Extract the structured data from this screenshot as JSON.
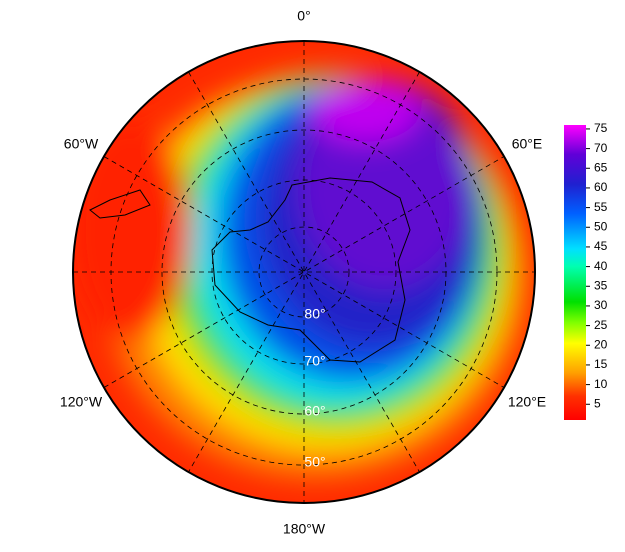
{
  "map": {
    "longitude_labels": [
      "0°",
      "60°E",
      "120°E",
      "180°W",
      "120°W",
      "60°W"
    ],
    "latitude_labels": [
      "80°",
      "70°",
      "60°",
      "50°"
    ]
  },
  "colorbar": {
    "range": [
      1,
      76
    ],
    "ticks": [
      5,
      10,
      15,
      20,
      25,
      30,
      35,
      40,
      45,
      50,
      55,
      60,
      65,
      70,
      75
    ]
  }
}
